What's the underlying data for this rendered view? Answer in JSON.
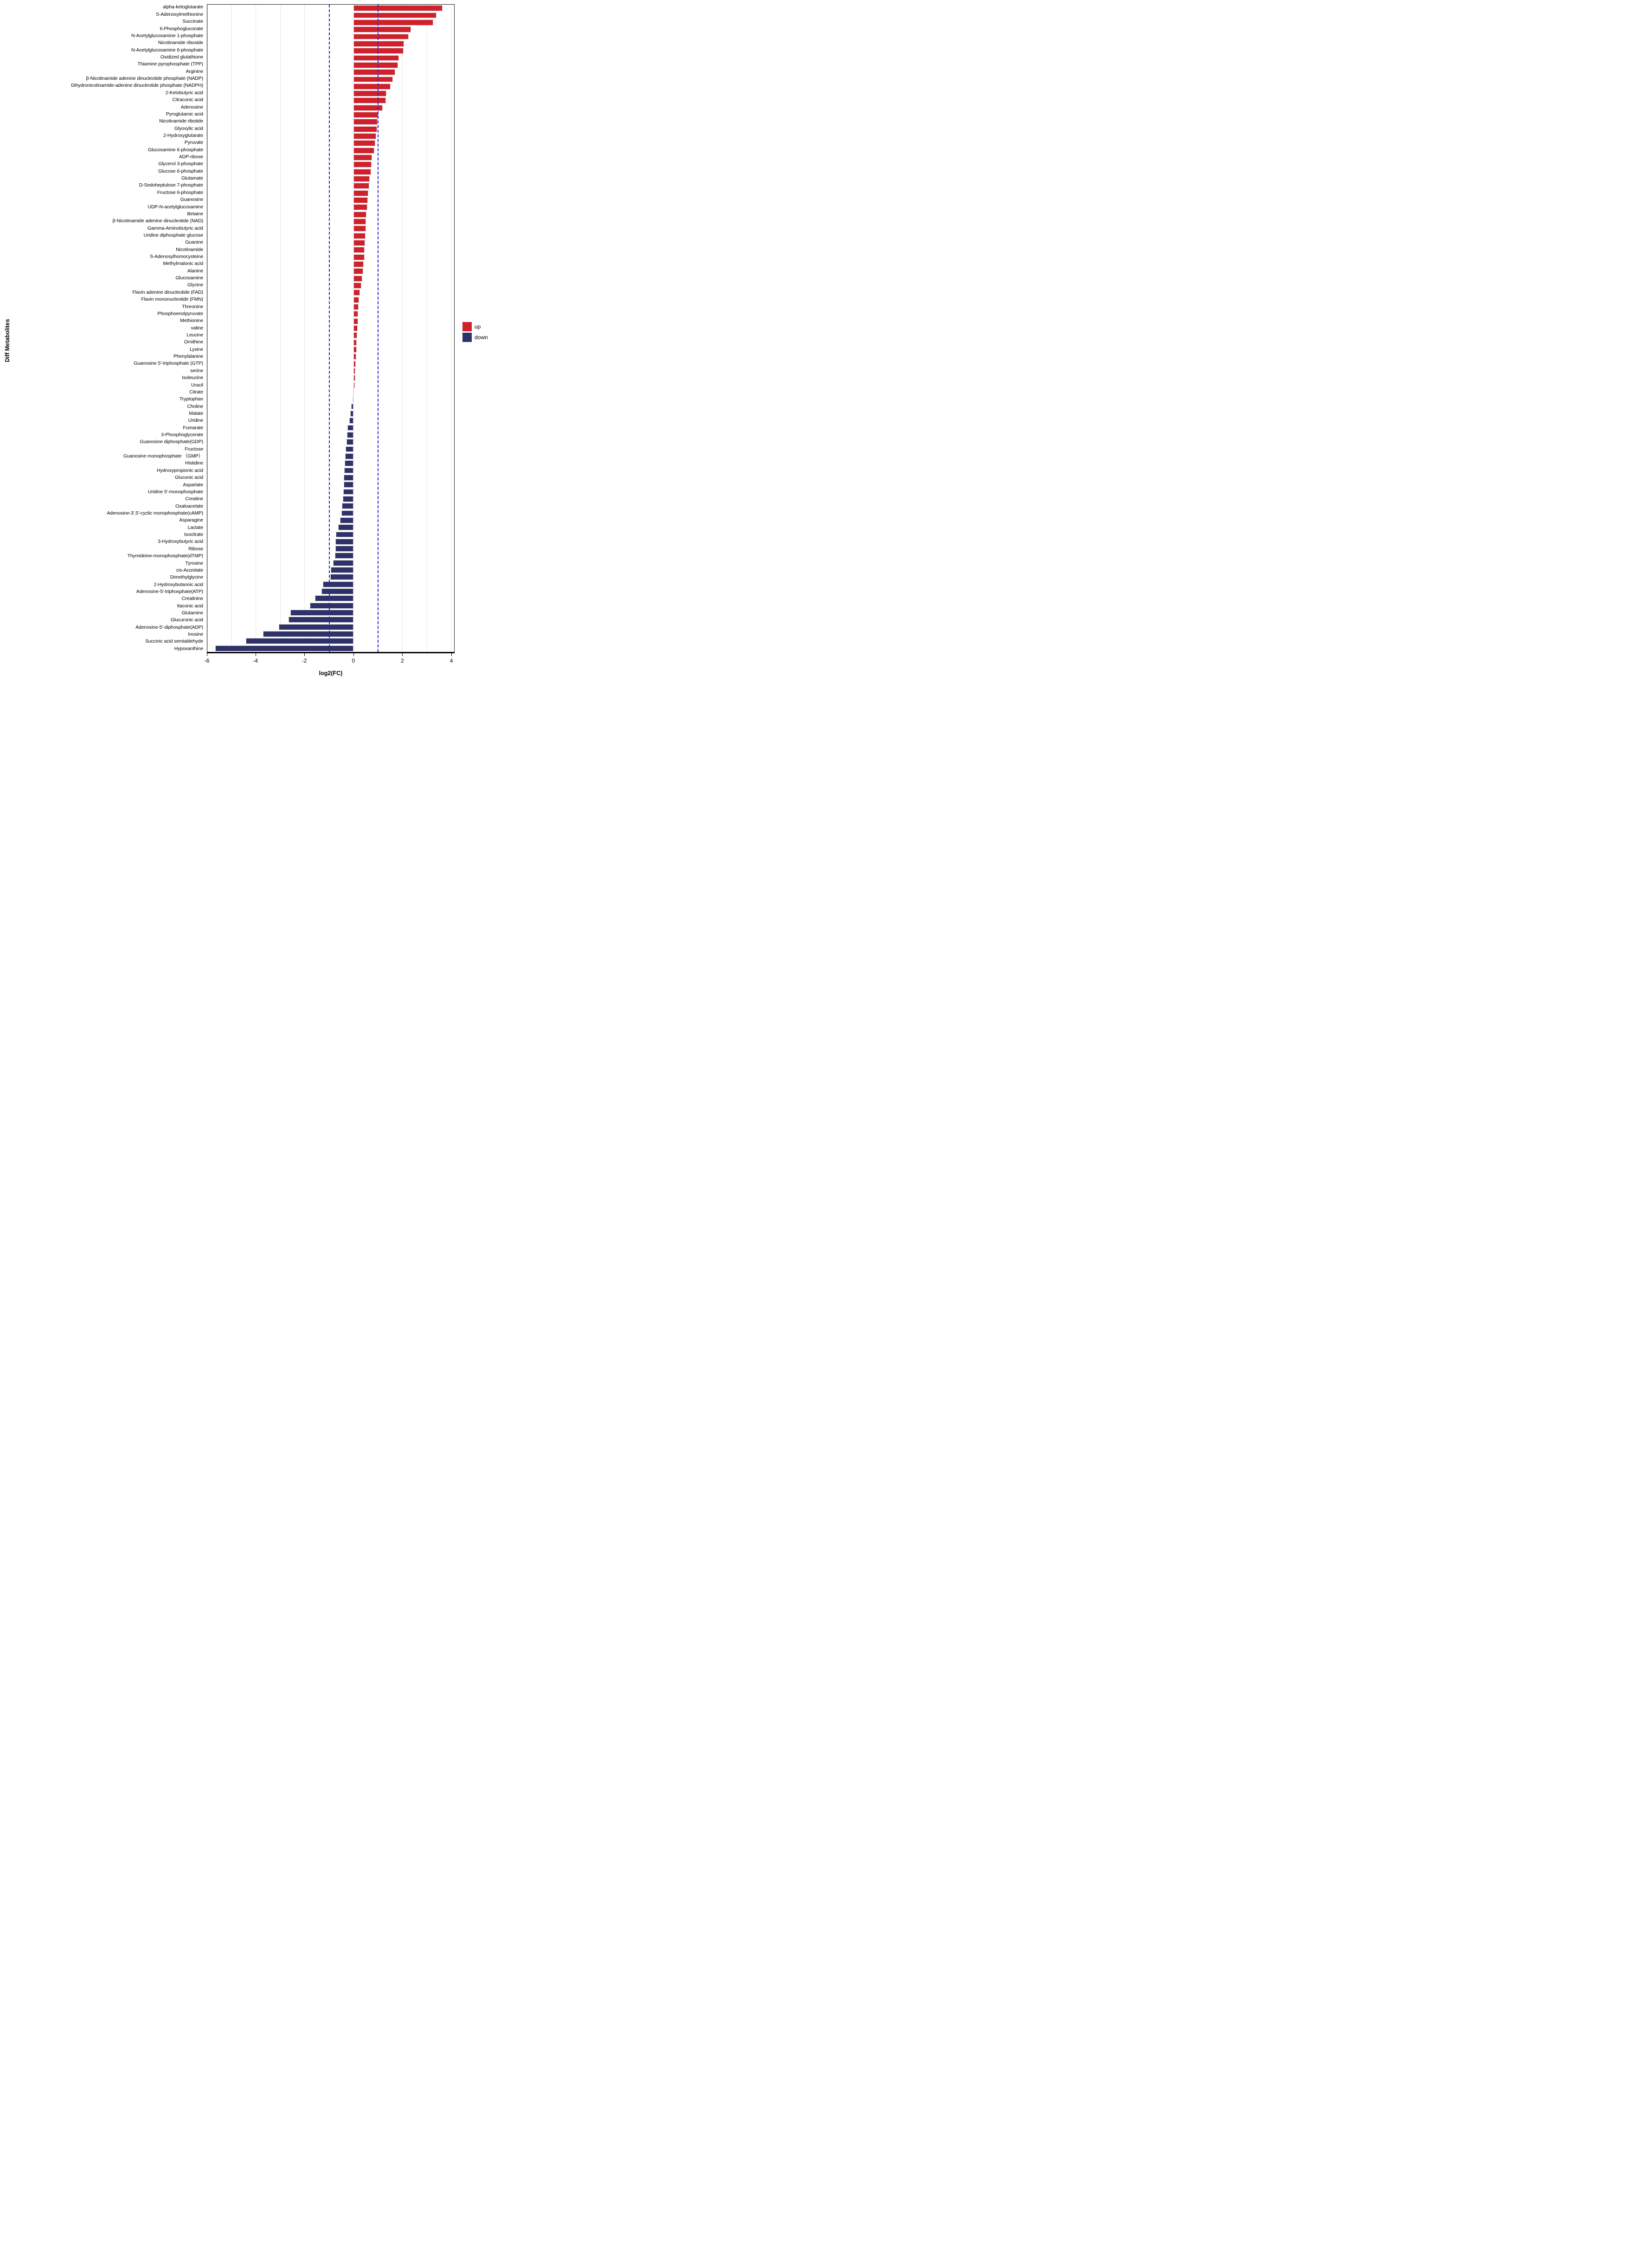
{
  "chart_data": {
    "type": "bar",
    "orientation": "horizontal",
    "title": "",
    "xlabel": "log2(FC)",
    "ylabel": "Diff Metabolites",
    "xlim": [
      -5.98,
      4.13
    ],
    "x_ticks": [
      -6,
      -4,
      -2,
      0,
      2,
      4
    ],
    "x_tick_labels": [
      "-6",
      "-4",
      "-2",
      "0",
      "2",
      "4"
    ],
    "gridlines": [
      -6,
      -5,
      -4,
      -3,
      -2,
      -1,
      0,
      1,
      2,
      3,
      4
    ],
    "thresholds": [
      -1,
      1
    ],
    "grid_on": true,
    "legend_position": "right-middle",
    "legend": [
      {
        "label": "up",
        "color": "#d0202c"
      },
      {
        "label": "down",
        "color": "#2e3268"
      }
    ],
    "colors": {
      "up": "#d0202c",
      "down": "#2e3268",
      "threshold_line": "#2323cd",
      "gridline": "#e7e7e7",
      "axis": "#000000"
    },
    "categories": [
      "alpha-ketoglutarate",
      "S-Adenosylmethionine",
      "Succinate",
      "6-Phosphogluconate",
      "N-Acetylglucosamine 1-phosphate",
      "Nicotinamide riboside",
      "N-Acetylglucosamine 6-phosphate",
      "Oxidized glutathione",
      "Thiamine pyrophosphate (TPP)",
      "Arginine",
      "β-Nicotinamide adenine dinucleotide phosphate (NADP)",
      "Dihydronicotinamide-adenine dinucleotide phosphate (NADPH)",
      "2-Ketobutyric acid",
      "Citraconic acid",
      "Adenosine",
      "Pyroglutamic acid",
      "Nicotinamide ribotide",
      "Glyoxylic acid",
      "2-Hydroxyglutarate",
      "Pyruvate",
      "Glucosamine 6-phosphate",
      "ADP-ribose",
      "Glycerol 3-phosphate",
      "Glucose 6-phosphate",
      "Glutamate",
      "D-Sedoheptulose 7-phosphate",
      "Fructose 6-phosphate",
      "Guanosine",
      "UDP-N-acetylglucosamine",
      "Betaine",
      "β-Nicotinamide adenine dinucleotide (NAD)",
      "Gamma-Aminobutyric acid",
      "Uridine diphosphate glucose",
      "Guanine",
      "Nicotinamide",
      "S-Adenosylhomocysteine",
      "Methylmalonic acid",
      "Alanine",
      "Glucosamine",
      "Glycine",
      "Flavin adenine dinucleotide (FAD)",
      "Flavin mononucleotide (FMN)",
      "Threonine",
      "Phosphoenolpyruvate",
      "Methionine",
      "valine",
      "Leucine",
      "Ornithine",
      "Lysine",
      "Phenylalanine",
      "Guanosine 5'-triphosphate (GTP)",
      "serine",
      "Isoleucine",
      "Uracil",
      "Citrate",
      "Tryptophan",
      "Choline",
      "Malate",
      "Uridine",
      "Fumarate",
      "3-Phosphoglycerate",
      "Guanosine diphosphate(GDP)",
      "Fructose",
      "Guanosine monophosphate （GMP）",
      "Histidine",
      "Hydroxypropionic acid",
      "Gluconic acid",
      "Aspartate",
      "Uridine 5'-monophosphate",
      "Creatine",
      "Oxaloacetate",
      "Adenosine-3',5'-cyclic monophosphate(cAMP)",
      "Asparagine",
      "Lactate",
      "Isocitrate",
      "3-Hydroxybutyric acid",
      "Ribose",
      "Thymideine-monophosphate(dTMP)",
      "Tyrosine",
      "cis-Aconitate",
      "Dimethylglycine",
      "2-Hydroxybutanoic acid",
      "Adenosine-5'-triphosphate(ATP)",
      "Creatinine",
      "Itaconic acid",
      "Glutamine",
      "Glucuronic acid",
      "Adenosine-5'-diphosphate(ADP)",
      "Inosine",
      "Succinic acid semialdehyde",
      "Hypoxanthine"
    ],
    "values": [
      3.65,
      3.4,
      3.28,
      2.37,
      2.26,
      2.08,
      2.05,
      1.86,
      1.83,
      1.72,
      1.62,
      1.52,
      1.35,
      1.33,
      1.2,
      1.03,
      1.0,
      0.97,
      0.93,
      0.89,
      0.87,
      0.76,
      0.74,
      0.72,
      0.68,
      0.65,
      0.62,
      0.6,
      0.57,
      0.53,
      0.52,
      0.51,
      0.5,
      0.48,
      0.47,
      0.46,
      0.43,
      0.41,
      0.36,
      0.33,
      0.27,
      0.23,
      0.22,
      0.2,
      0.19,
      0.18,
      0.16,
      0.14,
      0.13,
      0.12,
      0.1,
      0.09,
      0.08,
      0.06,
      -0.02,
      -0.04,
      -0.09,
      -0.13,
      -0.17,
      -0.25,
      -0.26,
      -0.28,
      -0.31,
      -0.33,
      -0.35,
      -0.38,
      -0.39,
      -0.4,
      -0.41,
      -0.44,
      -0.47,
      -0.48,
      -0.54,
      -0.62,
      -0.71,
      -0.73,
      -0.74,
      -0.76,
      -0.83,
      -0.92,
      -0.94,
      -1.25,
      -1.31,
      -1.57,
      -1.78,
      -2.58,
      -2.65,
      -3.05,
      -3.7,
      -4.4,
      -5.65
    ]
  }
}
